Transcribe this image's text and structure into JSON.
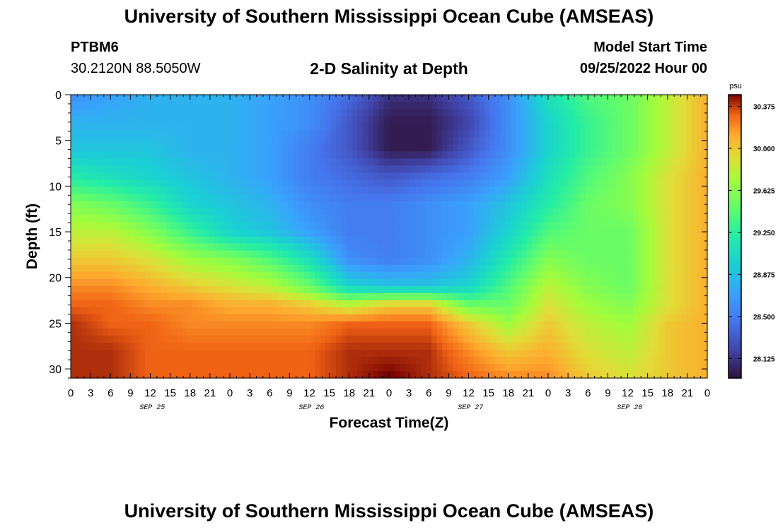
{
  "header": {
    "title": "University of Southern Mississippi Ocean Cube (AMSEAS)",
    "station": "PTBM6",
    "coords": "30.2120N  88.5050W",
    "subtitle": "2-D Salinity at Depth",
    "start_label": "Model Start Time",
    "start_value": "09/25/2022 Hour 00"
  },
  "footer": {
    "title": "University of Southern Mississippi Ocean Cube (AMSEAS)"
  },
  "chart_data": {
    "type": "heatmap",
    "title": "2-D Salinity at Depth",
    "xlabel": "Forecast Time(Z)",
    "ylabel": "Depth (ft)",
    "x_tick_labels": [
      "0",
      "3",
      "6",
      "9",
      "12",
      "15",
      "18",
      "21",
      "0",
      "3",
      "6",
      "9",
      "12",
      "15",
      "18",
      "21",
      "0",
      "3",
      "6",
      "9",
      "12",
      "15",
      "18",
      "21",
      "0",
      "3",
      "6",
      "9",
      "12",
      "15",
      "18",
      "21",
      "0"
    ],
    "x_day_labels": [
      "SEP 25",
      "SEP 26",
      "SEP 27",
      "SEP 28"
    ],
    "xlim_hours": [
      0,
      96
    ],
    "y_ticks": [
      0,
      5,
      10,
      15,
      20,
      25,
      30
    ],
    "ylim": [
      0,
      31
    ],
    "y_inverted": true,
    "colorbar": {
      "unit": "psu",
      "ticks": [
        "30.375",
        "30.000",
        "29.625",
        "29.250",
        "28.875",
        "28.500",
        "28.125"
      ],
      "tick_values": [
        30.375,
        30.0,
        29.625,
        29.25,
        28.875,
        28.5,
        28.125
      ],
      "range": [
        27.95,
        30.48
      ]
    },
    "x_hours": [
      0,
      6,
      12,
      18,
      24,
      30,
      36,
      42,
      48,
      54,
      60,
      66,
      72,
      78,
      84,
      90,
      96
    ],
    "depth_ft": [
      0,
      3,
      6,
      9,
      12,
      15,
      18,
      21,
      23,
      25,
      28,
      31
    ],
    "salinity_psu": [
      [
        28.6,
        28.7,
        28.8,
        28.8,
        28.8,
        28.7,
        28.6,
        28.4,
        28.1,
        28.1,
        28.3,
        28.6,
        29.1,
        29.4,
        29.5,
        29.8,
        30.1
      ],
      [
        28.8,
        28.8,
        28.8,
        28.8,
        28.8,
        28.7,
        28.6,
        28.3,
        28.0,
        28.0,
        28.2,
        28.6,
        29.0,
        29.3,
        29.5,
        29.8,
        30.1
      ],
      [
        28.9,
        28.9,
        28.9,
        28.8,
        28.8,
        28.7,
        28.5,
        28.3,
        28.0,
        28.0,
        28.3,
        28.6,
        29.0,
        29.3,
        29.5,
        29.8,
        30.1
      ],
      [
        29.2,
        29.1,
        29.0,
        28.9,
        28.8,
        28.7,
        28.5,
        28.4,
        28.3,
        28.4,
        28.5,
        28.7,
        29.1,
        29.4,
        29.6,
        29.9,
        30.1
      ],
      [
        29.6,
        29.5,
        29.3,
        29.0,
        28.9,
        28.8,
        28.6,
        28.5,
        28.5,
        28.6,
        28.7,
        28.9,
        29.2,
        29.5,
        29.6,
        29.9,
        30.1
      ],
      [
        29.8,
        29.8,
        29.6,
        29.3,
        29.0,
        28.9,
        28.7,
        28.5,
        28.5,
        28.6,
        28.7,
        29.0,
        29.4,
        29.5,
        29.5,
        29.9,
        30.1
      ],
      [
        30.0,
        30.0,
        29.9,
        29.7,
        29.6,
        29.4,
        29.1,
        28.6,
        28.5,
        28.6,
        28.8,
        29.2,
        29.6,
        29.5,
        29.5,
        29.9,
        30.1
      ],
      [
        30.2,
        30.2,
        30.1,
        30.0,
        29.9,
        29.8,
        29.5,
        29.0,
        28.9,
        28.9,
        29.0,
        29.4,
        29.8,
        29.6,
        29.5,
        29.9,
        30.1
      ],
      [
        30.3,
        30.3,
        30.2,
        30.2,
        30.1,
        30.1,
        30.0,
        29.8,
        30.0,
        30.0,
        29.5,
        29.5,
        29.9,
        29.7,
        29.6,
        29.9,
        30.1
      ],
      [
        30.4,
        30.3,
        30.3,
        30.2,
        30.2,
        30.2,
        30.2,
        30.3,
        30.3,
        30.3,
        30.0,
        29.7,
        30.0,
        29.8,
        29.7,
        30.0,
        30.1
      ],
      [
        30.4,
        30.4,
        30.3,
        30.3,
        30.3,
        30.3,
        30.3,
        30.4,
        30.4,
        30.4,
        30.2,
        30.0,
        30.1,
        29.9,
        29.8,
        30.0,
        30.1
      ],
      [
        30.4,
        30.4,
        30.3,
        30.3,
        30.3,
        30.3,
        30.3,
        30.4,
        30.5,
        30.4,
        30.3,
        30.2,
        30.2,
        30.0,
        29.9,
        30.0,
        30.1
      ]
    ]
  }
}
